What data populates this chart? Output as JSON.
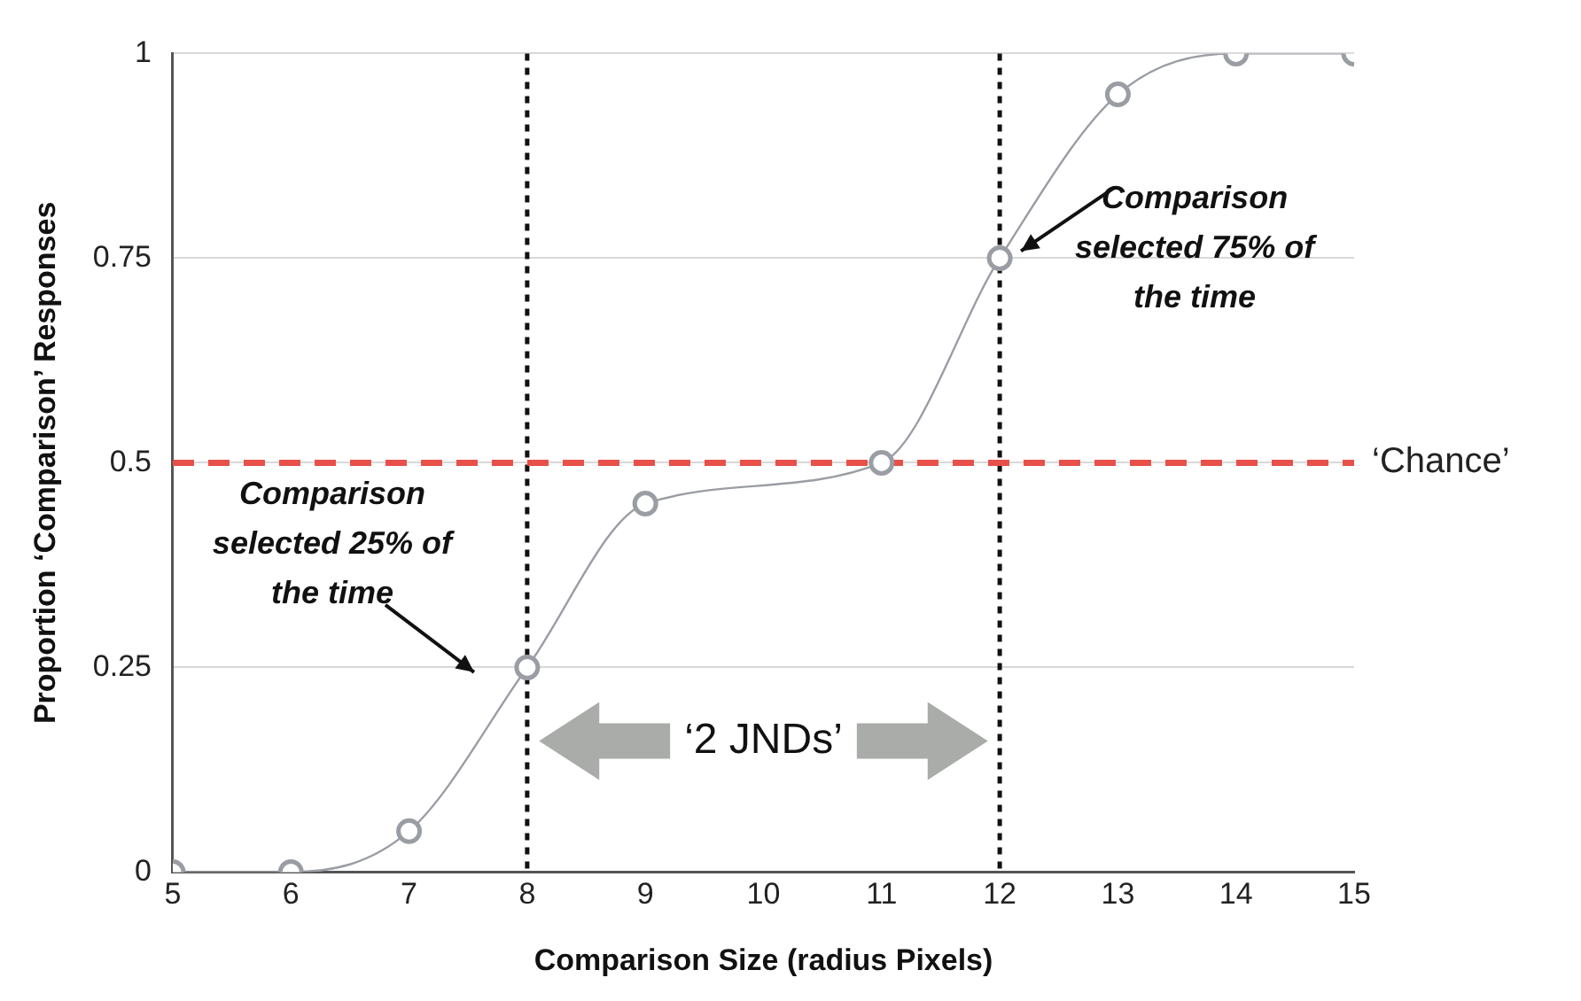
{
  "chart_data": {
    "type": "line",
    "xlabel": "Comparison Size (radius Pixels)",
    "ylabel": "Proportion ‘Comparison’ Responses",
    "x": [
      5,
      6,
      7,
      8,
      9,
      11,
      12,
      13,
      14,
      15
    ],
    "series": [
      {
        "color": "#9a9da3",
        "values": [
          0,
          0,
          0.05,
          0.25,
          0.45,
          0.5,
          0.75,
          0.95,
          1,
          1
        ]
      }
    ],
    "xlim": [
      5,
      15
    ],
    "xticks": [
      5,
      6,
      7,
      8,
      9,
      10,
      11,
      12,
      13,
      14,
      15
    ],
    "ylim": [
      0,
      1
    ],
    "yticks": [
      0,
      0.25,
      0.5,
      0.75,
      1
    ],
    "grid": "y",
    "marker": "circle",
    "line_style": "solid",
    "ref_lines": [
      {
        "axis": "x",
        "value": 8,
        "color": "#111111",
        "line_style": "dotted"
      },
      {
        "axis": "x",
        "value": 12,
        "color": "#111111",
        "line_style": "dotted"
      },
      {
        "axis": "y",
        "value": 0.5,
        "label": "‘Chance’",
        "color": "#e8504a",
        "line_style": "dashed"
      }
    ],
    "annotations": [
      "Comparison selected 25% of the time",
      {
        "text": "Comparison selected 75% of the time",
        "x": 12,
        "y": 0.75
      },
      "‘2 JNDs’"
    ]
  }
}
